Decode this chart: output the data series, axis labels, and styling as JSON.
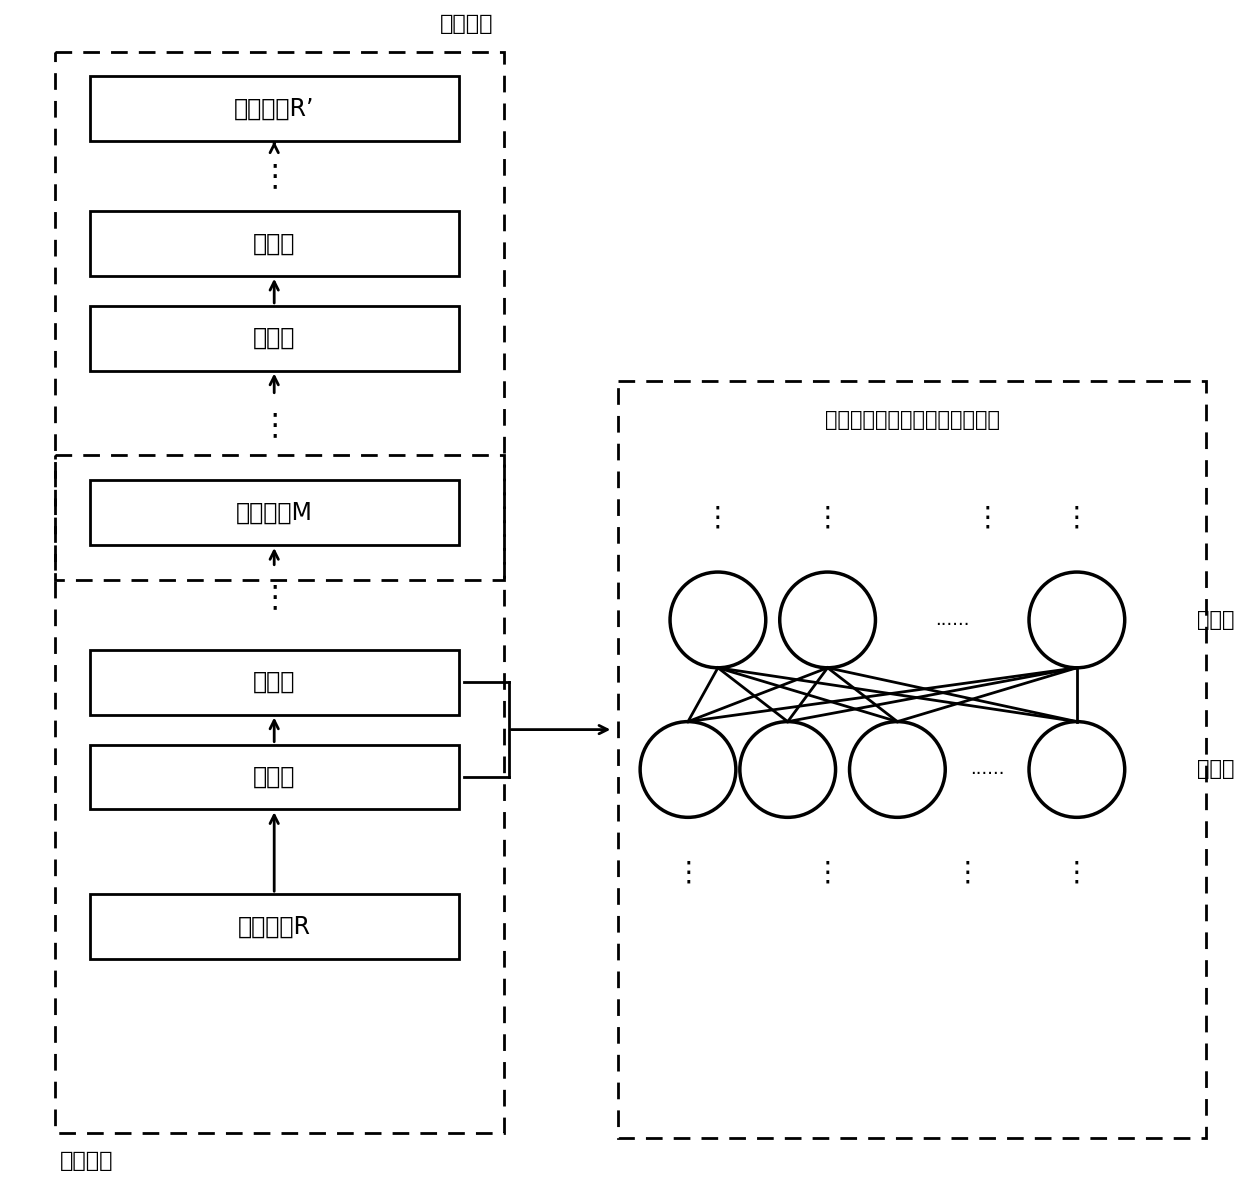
{
  "bg_color": "#ffffff",
  "encoder_label": "编码网络",
  "decoder_label": "解码网络",
  "nn_label": "层与层之间采用全连接神经网络",
  "raw_data_label": "原始数据R",
  "hidden_label": "隐藏层",
  "low_dim_label": "低维数据M",
  "recon_label": "重构数据R’",
  "hidden_layer_label": "隐藏层"
}
